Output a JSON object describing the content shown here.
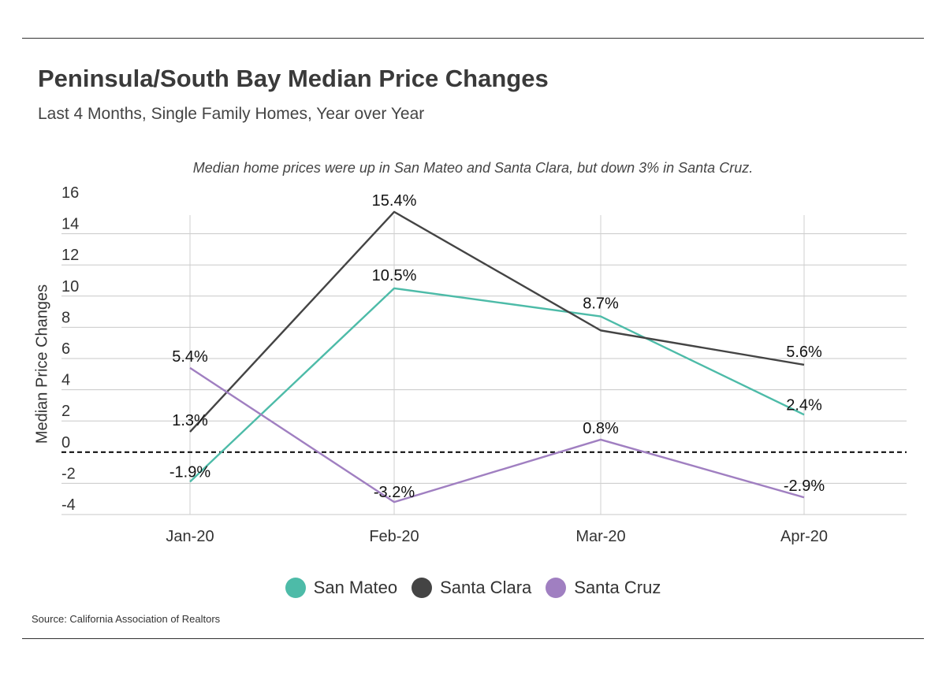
{
  "title": "Peninsula/South Bay Median Price Changes",
  "subtitle": "Last 4 Months, Single Family Homes, Year over Year",
  "annotation": "Median home prices were up in San Mateo and Santa Clara, but down 3% in Santa Cruz.",
  "source": "Source:  California Association of Realtors",
  "chart_data": {
    "type": "line",
    "categories": [
      "Jan-20",
      "Feb-20",
      "Mar-20",
      "Apr-20"
    ],
    "ylabel": "Median Price Changes",
    "xlabel": "",
    "ylim": [
      -4,
      16
    ],
    "yticks": [
      16,
      14,
      12,
      10,
      8,
      6,
      4,
      2,
      0,
      -2,
      -4
    ],
    "grid": true,
    "zero_line": "dashed",
    "legend_position": "bottom",
    "series": [
      {
        "name": "San Mateo",
        "color": "#4dbba8",
        "values": [
          -1.9,
          10.5,
          8.7,
          2.4
        ],
        "labels": [
          "-1.9%",
          "10.5%",
          "8.7%",
          "2.4%"
        ]
      },
      {
        "name": "Santa Clara",
        "color": "#444444",
        "values": [
          1.3,
          15.4,
          7.8,
          5.6
        ],
        "labels": [
          "1.3%",
          "15.4%",
          "",
          "5.6%"
        ]
      },
      {
        "name": "Santa Cruz",
        "color": "#a07fc1",
        "values": [
          5.4,
          -3.2,
          0.8,
          -2.9
        ],
        "labels": [
          "5.4%",
          "-3.2%",
          "0.8%",
          "-2.9%"
        ]
      }
    ]
  }
}
